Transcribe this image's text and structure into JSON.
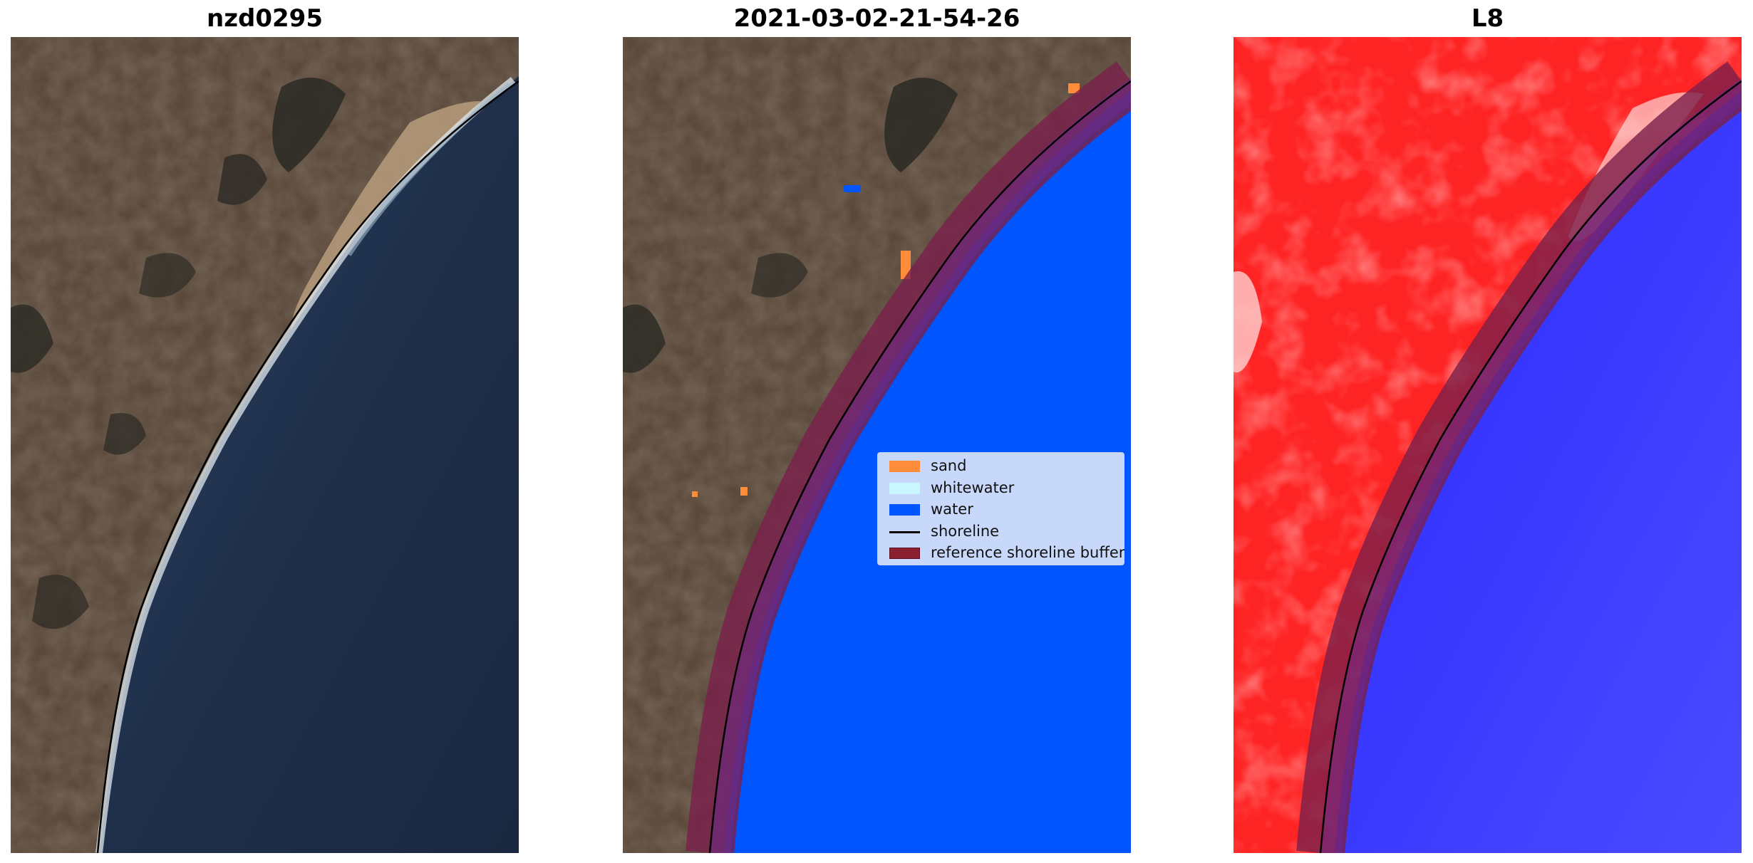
{
  "panels": [
    {
      "title": "nzd0295"
    },
    {
      "title": "2021-03-02-21-54-26"
    },
    {
      "title": "L8"
    }
  ],
  "legend": {
    "items": [
      {
        "label": "sand",
        "kind": "patch",
        "color": "#ff8c3a"
      },
      {
        "label": "whitewater",
        "kind": "patch",
        "color": "#c8f7ff"
      },
      {
        "label": "water",
        "kind": "patch",
        "color": "#0055ff"
      },
      {
        "label": "shoreline",
        "kind": "line",
        "color": "#000000"
      },
      {
        "label": "reference shoreline buffer",
        "kind": "patch",
        "color": "#8b2030"
      }
    ]
  },
  "colors": {
    "land": "#5b4a3c",
    "ocean": "#1e2d47",
    "classified_water": "#0055ff",
    "buffer": "#8b2030",
    "l8_land": "#ff2020",
    "l8_water": "#1a1aff"
  }
}
